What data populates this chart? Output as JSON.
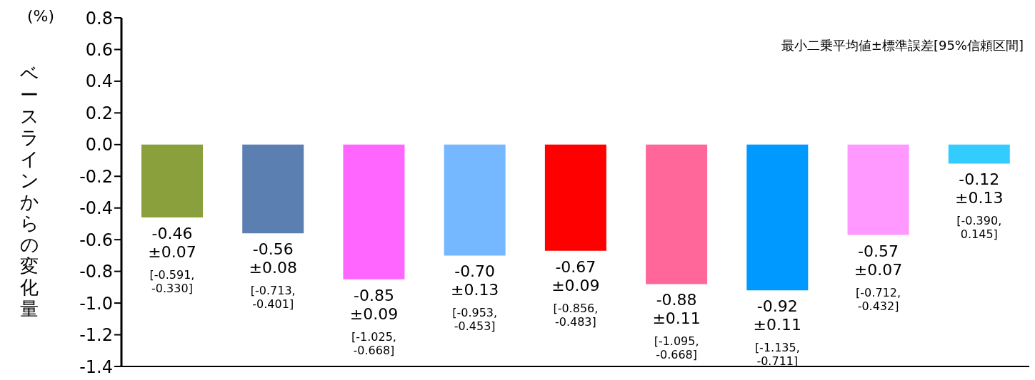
{
  "chart_data": {
    "type": "bar",
    "ylabel": "ベースラインからの変化量",
    "annotations": [
      "(%)",
      "最小二乗平均値±標準誤差[95%信頼区間]"
    ],
    "categories": [
      null,
      null,
      null,
      null,
      null,
      null,
      null,
      null,
      null
    ],
    "values": [
      -0.46,
      -0.56,
      -0.85,
      -0.7,
      -0.67,
      -0.88,
      -0.92,
      -0.57,
      -0.12
    ],
    "colors": [
      "#8aa03c",
      "#5b7fb1",
      "#ff66ff",
      "#75b8ff",
      "#ff0000",
      "#ff6699",
      "#0099ff",
      "#ff99ff",
      "#33ccff"
    ],
    "value_labels": [
      "-0.46\n±0.07\n[-0.591,\n-0.330]",
      "-0.56\n±0.08\n[-0.713,\n-0.401]",
      "-0.85\n±0.09\n[-1.025,\n-0.668]",
      "-0.70\n±0.13\n[-0.953,\n-0.453]",
      "-0.67\n±0.09\n[-0.856,\n-0.483]",
      "-0.88\n±0.11\n[-1.095,\n-0.668]",
      "-0.92\n±0.11\n[-1.135,\n-0.711]",
      "-0.57\n±0.07\n[-0.712,\n-0.432]",
      "-0.12\n±0.13\n[-0.390,\n0.145]"
    ],
    "ylim": [
      -1.4,
      0.8
    ],
    "yticks": [
      {
        "value": -1.4,
        "label": "-1.4"
      },
      {
        "value": -1.2,
        "label": "-1.2"
      },
      {
        "value": -1.0,
        "label": "-1.0"
      },
      {
        "value": -0.8,
        "label": "-0.8"
      },
      {
        "value": -0.6,
        "label": "-0.6"
      },
      {
        "value": -0.4,
        "label": "-0.4"
      },
      {
        "value": -0.2,
        "label": "-0.2"
      },
      {
        "value": 0,
        "label": "0.0"
      },
      {
        "value": 0.2,
        "label": "0.2"
      },
      {
        "value": 0.4,
        "label": "0.4"
      },
      {
        "value": 0.6,
        "label": "0.6"
      },
      {
        "value": 0.8,
        "label": "0.8"
      }
    ],
    "tick_labels": "y"
  }
}
